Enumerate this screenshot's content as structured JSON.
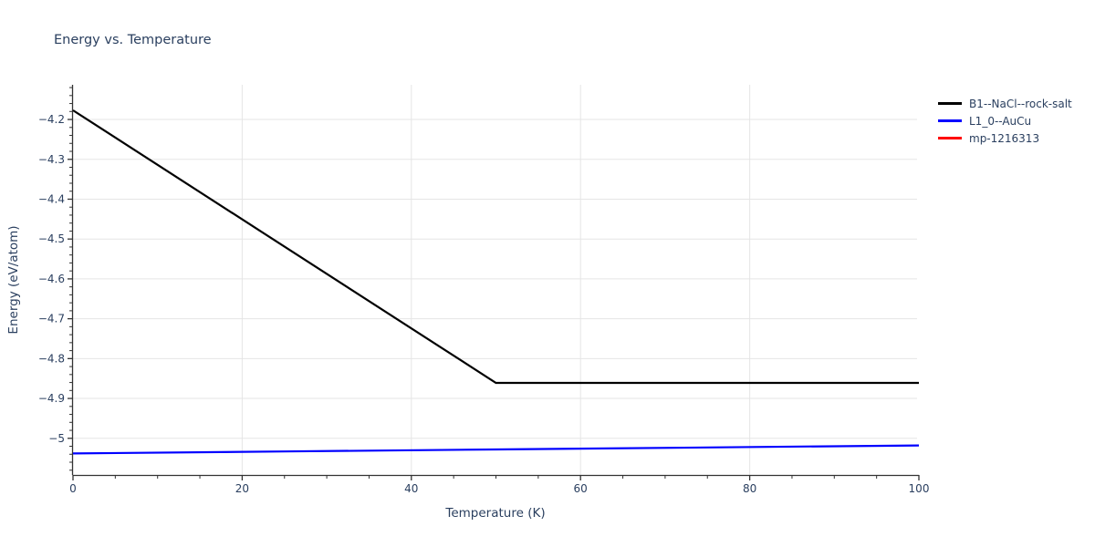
{
  "chart_data": {
    "type": "line",
    "title": "Energy vs. Temperature",
    "xlabel": "Temperature (K)",
    "ylabel": "Energy (eV/atom)",
    "xlim": [
      0,
      100
    ],
    "ylim": [
      -5.092,
      -4.113
    ],
    "grid": {
      "on": true,
      "x_values": [
        20,
        40,
        60,
        80
      ]
    },
    "x_ticks": {
      "values": [
        0,
        20,
        40,
        60,
        80,
        100
      ],
      "labels": [
        "0",
        "20",
        "40",
        "60",
        "80",
        "100"
      ],
      "minor_step": 5
    },
    "y_ticks": {
      "values": [
        -4.2,
        -4.3,
        -4.4,
        -4.5,
        -4.6,
        -4.7,
        -4.8,
        -4.9,
        -5.0
      ],
      "labels": [
        "−4.2",
        "−4.3",
        "−4.4",
        "−4.5",
        "−4.6",
        "−4.7",
        "−4.8",
        "−4.9",
        "−5"
      ],
      "minor_step": 0.02
    },
    "series": [
      {
        "name": "B1--NaCl--rock-salt",
        "color": "#000000",
        "points": [
          [
            0,
            -4.177
          ],
          [
            50,
            -4.861
          ],
          [
            100,
            -4.861
          ]
        ]
      },
      {
        "name": "L1_0--AuCu",
        "color": "#0000ff",
        "points": [
          [
            0,
            -5.038
          ],
          [
            25,
            -5.033
          ],
          [
            50,
            -5.028
          ],
          [
            75,
            -5.023
          ],
          [
            100,
            -5.018
          ]
        ]
      },
      {
        "name": "mp-1216313",
        "color": "#ff0000",
        "points": []
      }
    ],
    "legend_position": "top-right-outside",
    "colors": {
      "text": "#2a3f5f",
      "axis": "#333333",
      "grid": "#e5e5e5",
      "background": "#ffffff"
    }
  }
}
